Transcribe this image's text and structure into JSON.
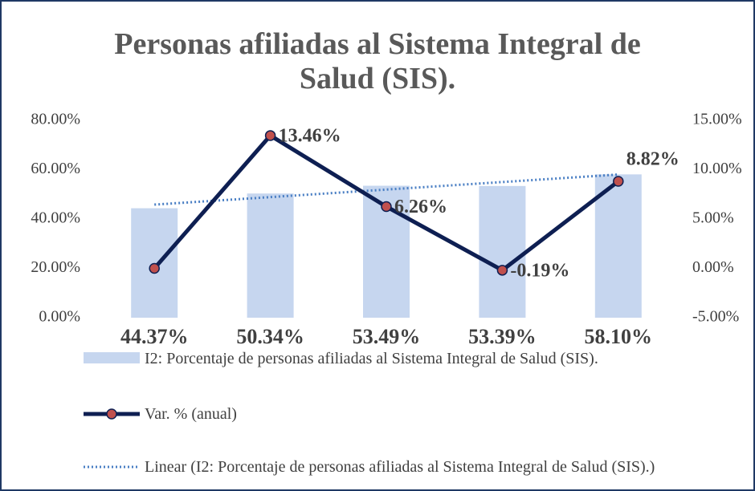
{
  "chart_data": {
    "type": "bar-line",
    "title": "Personas afiliadas al Sistema Integral de Salud (SIS).",
    "categories": [
      null,
      null,
      null,
      null,
      null
    ],
    "series": [
      {
        "name": "I2: Porcentaje de personas afiliadas al Sistema Integral de Salud (SIS).",
        "type": "bar",
        "color": "#c6d6ef",
        "values": [
          44.37,
          50.34,
          53.49,
          53.39,
          58.1
        ],
        "value_labels": [
          "44.37%",
          "50.34%",
          "53.49%",
          "53.39%",
          "58.10%"
        ]
      },
      {
        "name": "Var. % (anual)",
        "type": "line",
        "axis": "y2",
        "color": "#0e1f52",
        "marker_color": "#c0504d",
        "values": [
          0,
          13.46,
          6.26,
          -0.19,
          8.82
        ],
        "value_labels": [
          null,
          "13.46%",
          "6.26%",
          "-0.19%",
          "8.82%"
        ]
      }
    ],
    "trendline": {
      "name": "Linear (I2: Porcentaje de personas afiliadas al Sistema Integral de Salud (SIS).)",
      "fit": "linear",
      "series": 0,
      "color": "#4a7fc4"
    },
    "ylim": [
      0,
      80
    ],
    "yticks": [
      {
        "value": 0,
        "label": "0.00%"
      },
      {
        "value": 20,
        "label": "20.00%"
      },
      {
        "value": 40,
        "label": "40.00%"
      },
      {
        "value": 60,
        "label": "60.00%"
      },
      {
        "value": 80,
        "label": "80.00%"
      }
    ],
    "y2lim": [
      -5,
      15
    ],
    "y2ticks": [
      {
        "value": -5,
        "label": "-5.00%"
      },
      {
        "value": 0,
        "label": "0.00%"
      },
      {
        "value": 5,
        "label": "5.00%"
      },
      {
        "value": 10,
        "label": "10.00%"
      },
      {
        "value": 15,
        "label": "15.00%"
      }
    ],
    "grid": false,
    "legend": "bottom"
  }
}
